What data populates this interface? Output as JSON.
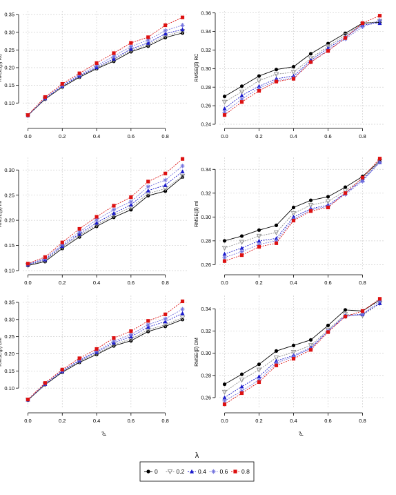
{
  "colors": {
    "lambda_0": "#000000",
    "lambda_0.2": "#8c8c8c",
    "lambda_0.4": "#1a1acc",
    "lambda_0.6": "#7070dd",
    "lambda_0.8": "#dd1111",
    "grid": "#cfcfcf",
    "axis": "#000000"
  },
  "legend": {
    "title": "λ",
    "entries": [
      {
        "label": "0",
        "marker": "circle"
      },
      {
        "label": "0.2",
        "marker": "triangle-down"
      },
      {
        "label": "0.4",
        "marker": "triangle-up"
      },
      {
        "label": "0.6",
        "marker": "star"
      },
      {
        "label": "0.8",
        "marker": "square"
      }
    ],
    "placement": "bottom-center"
  },
  "chart_data": [
    {
      "type": "line",
      "ylabel": "RMSE(β̂) RC",
      "xlabel": "",
      "x": [
        0.0,
        0.1,
        0.2,
        0.3,
        0.4,
        0.5,
        0.6,
        0.7,
        0.8,
        0.9
      ],
      "xticks": [
        "0.0",
        "0.2",
        "0.4",
        "0.6",
        "0.8"
      ],
      "xlim": [
        -0.03,
        0.93
      ],
      "ylim": [
        0.04,
        0.36
      ],
      "yticks": [
        0.1,
        0.15,
        0.2,
        0.25,
        0.3,
        0.35
      ],
      "yticklabels": [
        "0.10",
        "0.15",
        "0.20",
        "0.25",
        "0.30",
        "0.35"
      ],
      "grid": true,
      "series": [
        {
          "name": "0",
          "values": [
            0.065,
            0.111,
            0.145,
            0.173,
            0.197,
            0.218,
            0.245,
            0.261,
            0.285,
            0.298
          ]
        },
        {
          "name": "0.2",
          "values": [
            0.065,
            0.112,
            0.146,
            0.175,
            0.199,
            0.222,
            0.249,
            0.265,
            0.29,
            0.303
          ]
        },
        {
          "name": "0.4",
          "values": [
            0.065,
            0.113,
            0.148,
            0.177,
            0.201,
            0.225,
            0.253,
            0.27,
            0.296,
            0.308
          ]
        },
        {
          "name": "0.6",
          "values": [
            0.065,
            0.114,
            0.15,
            0.18,
            0.206,
            0.232,
            0.26,
            0.278,
            0.305,
            0.32
          ]
        },
        {
          "name": "0.8",
          "values": [
            0.066,
            0.117,
            0.154,
            0.184,
            0.213,
            0.241,
            0.27,
            0.286,
            0.32,
            0.342
          ]
        }
      ]
    },
    {
      "type": "line",
      "ylabel": "RMSE(β̂) RC",
      "xlabel": "",
      "x": [
        0.0,
        0.1,
        0.2,
        0.3,
        0.4,
        0.5,
        0.6,
        0.7,
        0.8,
        0.9
      ],
      "xticks": [
        "0.0",
        "0.2",
        "0.4",
        "0.6",
        "0.8"
      ],
      "xlim": [
        -0.03,
        0.93
      ],
      "ylim": [
        0.24,
        0.362
      ],
      "yticks": [
        0.24,
        0.26,
        0.28,
        0.3,
        0.32,
        0.34,
        0.36
      ],
      "yticklabels": [
        "0.24",
        "0.26",
        "0.28",
        "0.30",
        "0.32",
        "0.34",
        "0.36"
      ],
      "grid": true,
      "series": [
        {
          "name": "0",
          "values": [
            0.27,
            0.281,
            0.292,
            0.299,
            0.302,
            0.316,
            0.327,
            0.338,
            0.349,
            0.35
          ]
        },
        {
          "name": "0.2",
          "values": [
            0.264,
            0.275,
            0.287,
            0.294,
            0.296,
            0.311,
            0.324,
            0.336,
            0.348,
            0.351
          ]
        },
        {
          "name": "0.4",
          "values": [
            0.257,
            0.271,
            0.281,
            0.289,
            0.292,
            0.309,
            0.322,
            0.334,
            0.347,
            0.349
          ]
        },
        {
          "name": "0.6",
          "values": [
            0.253,
            0.267,
            0.279,
            0.287,
            0.29,
            0.307,
            0.32,
            0.332,
            0.345,
            0.352
          ]
        },
        {
          "name": "0.8",
          "values": [
            0.25,
            0.264,
            0.276,
            0.286,
            0.289,
            0.307,
            0.319,
            0.333,
            0.349,
            0.357
          ]
        }
      ]
    },
    {
      "type": "line",
      "ylabel": "RMSE(β̂) ml",
      "xlabel": "",
      "x": [
        0.0,
        0.1,
        0.2,
        0.3,
        0.4,
        0.5,
        0.6,
        0.7,
        0.8,
        0.9
      ],
      "xticks": [
        "0.0",
        "0.2",
        "0.4",
        "0.6",
        "0.8"
      ],
      "xlim": [
        -0.03,
        0.93
      ],
      "ylim": [
        0.1,
        0.325
      ],
      "yticks": [
        0.1,
        0.15,
        0.2,
        0.25,
        0.3
      ],
      "yticklabels": [
        "0.10",
        "0.15",
        "0.20",
        "0.25",
        "0.30"
      ],
      "grid": true,
      "series": [
        {
          "name": "0",
          "values": [
            0.11,
            0.118,
            0.144,
            0.167,
            0.188,
            0.206,
            0.221,
            0.249,
            0.258,
            0.286
          ]
        },
        {
          "name": "0.2",
          "values": [
            0.111,
            0.12,
            0.147,
            0.17,
            0.191,
            0.21,
            0.226,
            0.253,
            0.263,
            0.288
          ]
        },
        {
          "name": "0.4",
          "values": [
            0.112,
            0.122,
            0.149,
            0.173,
            0.195,
            0.214,
            0.231,
            0.259,
            0.27,
            0.297
          ]
        },
        {
          "name": "0.6",
          "values": [
            0.113,
            0.124,
            0.152,
            0.177,
            0.201,
            0.221,
            0.237,
            0.267,
            0.28,
            0.308
          ]
        },
        {
          "name": "0.8",
          "values": [
            0.114,
            0.127,
            0.156,
            0.183,
            0.207,
            0.229,
            0.246,
            0.277,
            0.293,
            0.322
          ]
        }
      ]
    },
    {
      "type": "line",
      "ylabel": "RMSE(β̂) ml",
      "xlabel": "",
      "x": [
        0.0,
        0.1,
        0.2,
        0.3,
        0.4,
        0.5,
        0.6,
        0.7,
        0.8,
        0.9
      ],
      "xticks": [
        "0.0",
        "0.2",
        "0.4",
        "0.6",
        "0.8"
      ],
      "xlim": [
        -0.03,
        0.93
      ],
      "ylim": [
        0.255,
        0.35
      ],
      "yticks": [
        0.26,
        0.28,
        0.3,
        0.32,
        0.34
      ],
      "yticklabels": [
        "0.26",
        "0.28",
        "0.30",
        "0.32",
        "0.34"
      ],
      "grid": true,
      "series": [
        {
          "name": "0",
          "values": [
            0.28,
            0.284,
            0.289,
            0.293,
            0.308,
            0.314,
            0.317,
            0.325,
            0.334,
            0.347
          ]
        },
        {
          "name": "0.2",
          "values": [
            0.274,
            0.279,
            0.284,
            0.287,
            0.303,
            0.31,
            0.313,
            0.322,
            0.332,
            0.347
          ]
        },
        {
          "name": "0.4",
          "values": [
            0.269,
            0.274,
            0.28,
            0.282,
            0.3,
            0.307,
            0.31,
            0.32,
            0.331,
            0.346
          ]
        },
        {
          "name": "0.6",
          "values": [
            0.266,
            0.271,
            0.277,
            0.28,
            0.298,
            0.306,
            0.309,
            0.319,
            0.33,
            0.346
          ]
        },
        {
          "name": "0.8",
          "values": [
            0.263,
            0.268,
            0.275,
            0.278,
            0.297,
            0.305,
            0.308,
            0.32,
            0.333,
            0.349
          ]
        }
      ]
    },
    {
      "type": "line",
      "ylabel": "RMSE(β̂) DM",
      "xlabel": "ρ²",
      "x": [
        0.0,
        0.1,
        0.2,
        0.3,
        0.4,
        0.5,
        0.6,
        0.7,
        0.8,
        0.9
      ],
      "xticks": [
        "0.0",
        "0.2",
        "0.4",
        "0.6",
        "0.8"
      ],
      "xlim": [
        -0.03,
        0.93
      ],
      "ylim": [
        0.04,
        0.37
      ],
      "yticks": [
        0.1,
        0.15,
        0.2,
        0.25,
        0.3,
        0.35
      ],
      "yticklabels": [
        "0.10",
        "0.15",
        "0.20",
        "0.25",
        "0.30",
        "0.35"
      ],
      "grid": true,
      "series": [
        {
          "name": "0",
          "values": [
            0.065,
            0.11,
            0.146,
            0.175,
            0.198,
            0.223,
            0.238,
            0.265,
            0.28,
            0.3
          ]
        },
        {
          "name": "0.2",
          "values": [
            0.066,
            0.111,
            0.148,
            0.177,
            0.201,
            0.227,
            0.243,
            0.27,
            0.285,
            0.305
          ]
        },
        {
          "name": "0.4",
          "values": [
            0.066,
            0.112,
            0.149,
            0.18,
            0.205,
            0.232,
            0.25,
            0.278,
            0.294,
            0.318
          ]
        },
        {
          "name": "0.6",
          "values": [
            0.066,
            0.113,
            0.151,
            0.182,
            0.208,
            0.237,
            0.256,
            0.285,
            0.302,
            0.33
          ]
        },
        {
          "name": "0.8",
          "values": [
            0.067,
            0.115,
            0.154,
            0.187,
            0.214,
            0.246,
            0.266,
            0.296,
            0.315,
            0.353
          ]
        }
      ]
    },
    {
      "type": "line",
      "ylabel": "RMSE(β̂) DM",
      "xlabel": "ρ²",
      "x": [
        0.0,
        0.1,
        0.2,
        0.3,
        0.4,
        0.5,
        0.6,
        0.7,
        0.8,
        0.9
      ],
      "xticks": [
        "0.0",
        "0.2",
        "0.4",
        "0.6",
        "0.8"
      ],
      "xlim": [
        -0.03,
        0.93
      ],
      "ylim": [
        0.25,
        0.352
      ],
      "yticks": [
        0.26,
        0.28,
        0.3,
        0.32,
        0.34
      ],
      "yticklabels": [
        "0.26",
        "0.28",
        "0.30",
        "0.32",
        "0.34"
      ],
      "grid": true,
      "series": [
        {
          "name": "0",
          "values": [
            0.272,
            0.281,
            0.29,
            0.302,
            0.307,
            0.312,
            0.325,
            0.339,
            0.338,
            0.348
          ]
        },
        {
          "name": "0.2",
          "values": [
            0.265,
            0.276,
            0.285,
            0.296,
            0.301,
            0.307,
            0.321,
            0.335,
            0.334,
            0.345
          ]
        },
        {
          "name": "0.4",
          "values": [
            0.26,
            0.27,
            0.279,
            0.293,
            0.298,
            0.305,
            0.32,
            0.334,
            0.335,
            0.345
          ]
        },
        {
          "name": "0.6",
          "values": [
            0.257,
            0.266,
            0.276,
            0.291,
            0.297,
            0.304,
            0.32,
            0.333,
            0.335,
            0.347
          ]
        },
        {
          "name": "0.8",
          "values": [
            0.254,
            0.264,
            0.274,
            0.289,
            0.295,
            0.303,
            0.319,
            0.333,
            0.338,
            0.349
          ]
        }
      ]
    }
  ]
}
